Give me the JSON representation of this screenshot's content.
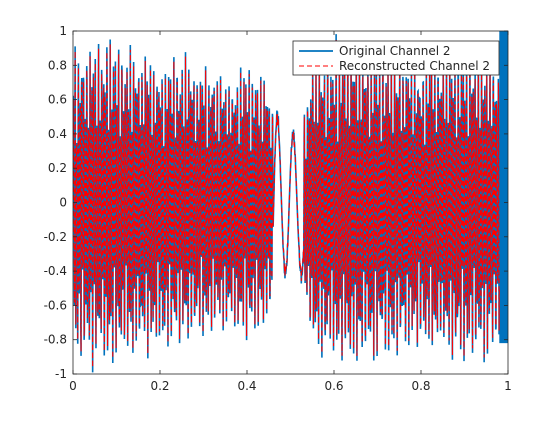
{
  "chart_data": {
    "type": "line",
    "title": "",
    "xlabel": "",
    "ylabel": "",
    "xlim": [
      0,
      1
    ],
    "ylim": [
      -1,
      1
    ],
    "x_ticks": [
      "0",
      "0.2",
      "0.4",
      "0.6",
      "0.8",
      "1"
    ],
    "y_ticks": [
      "1",
      "0.8",
      "0.6",
      "0.4",
      "0.2",
      "0",
      "-0.2",
      "-0.4",
      "-0.6",
      "-0.8",
      "-1"
    ],
    "grid": false,
    "legend_position": "top-right",
    "series": [
      {
        "name": "Original Channel 2",
        "color": "#0072BD",
        "style": "solid",
        "description_of_shape": "dense oscillating audio waveform spanning x 0 to 1, amplitude near +/-1 except quiet region around x 0.45-0.55 and saturated block near x 0.98-1"
      },
      {
        "name": "Reconstructed Channel 2",
        "color": "#FF0000",
        "style": "dashed",
        "description_of_shape": "dense oscillating waveform closely tracking the original from x 0 to about 0.98"
      }
    ],
    "envelope_samples": {
      "x": [
        0.0,
        0.05,
        0.1,
        0.15,
        0.2,
        0.25,
        0.3,
        0.35,
        0.4,
        0.45,
        0.48,
        0.5,
        0.52,
        0.55,
        0.6,
        0.65,
        0.7,
        0.75,
        0.8,
        0.85,
        0.9,
        0.95,
        0.98
      ],
      "amplitude": [
        0.95,
        1.0,
        1.0,
        0.95,
        0.9,
        0.9,
        0.85,
        0.8,
        0.85,
        0.75,
        0.45,
        0.45,
        0.4,
        0.9,
        1.0,
        1.0,
        0.95,
        0.95,
        0.9,
        0.95,
        1.0,
        0.95,
        0.9
      ]
    }
  }
}
